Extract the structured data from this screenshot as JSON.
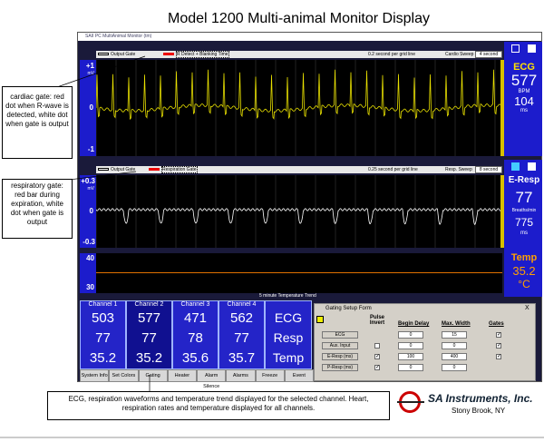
{
  "title": "Model 1200 Multi-animal Monitor Display",
  "window": {
    "title": "SAII PC MultiAnimal Monitor (tm)"
  },
  "callouts": [
    "cardiac gate: red dot when R-wave is detected, white dot when gate is output",
    "respiratory gate: red bar during expiration, white dot when gate is output",
    "ECG, respiration waveforms and temperature trend displayed for the selected channel.  Heart, respiration rates and temperature displayed for all channels."
  ],
  "ecg": {
    "legend": [
      "Output Gate",
      "R Detect + Blanking Time"
    ],
    "scale": "0.2 second per grid line",
    "sweep_label": "Cardio Sweep",
    "sweep": "4 second",
    "axis": [
      "+1",
      "mV",
      "0",
      "-1"
    ],
    "readout": {
      "name": "ECG",
      "rate": 577,
      "rate_unit": "BPM",
      "interval": 104,
      "interval_unit": "ms"
    }
  },
  "resp": {
    "legend": [
      "Output Gate",
      "Respiration Gate"
    ],
    "scale": "0.25 second per grid line",
    "sweep_label": "Resp. Sweep",
    "sweep": "8 second",
    "axis": [
      "+0.3",
      "mV",
      "0",
      "-0.3"
    ],
    "readout": {
      "name": "E-Resp",
      "rate": 77,
      "rate_unit": "Breaths/min",
      "interval": 775,
      "interval_unit": "ms"
    }
  },
  "temp": {
    "axis": [
      "40",
      "30"
    ],
    "caption": "5 minute Temperature Trend",
    "readout": {
      "name": "Temp",
      "value": 35.2,
      "unit": "°C"
    }
  },
  "channels": [
    {
      "name": "Channel 1",
      "rate": 503,
      "resp": 77,
      "temp": 35.2
    },
    {
      "name": "Channel 2",
      "rate": 577,
      "resp": 77,
      "temp": 35.2
    },
    {
      "name": "Channel 3",
      "rate": 471,
      "resp": 78,
      "temp": 35.6
    },
    {
      "name": "Channel 4",
      "rate": 562,
      "resp": 77,
      "temp": 35.7
    }
  ],
  "channel_labels": [
    "ECG",
    "Resp",
    "Temp"
  ],
  "buttons": [
    "System Info",
    "Set Colors",
    "Gating",
    "Heater",
    "Alarm Silence",
    "Alarms",
    "Freeze",
    "Event"
  ],
  "gating_form": {
    "title": "Gating Setup Form",
    "close": "X",
    "headers": [
      "Pulse Invert",
      "Begin Delay",
      "Max. Width",
      "Gates"
    ],
    "rows": [
      {
        "label": "ECG",
        "begin": 0,
        "width": 15
      },
      {
        "label": "Aux. Input",
        "begin": 0,
        "width": 0
      },
      {
        "label": "E-Resp (ms)",
        "begin": 100,
        "width": 400
      },
      {
        "label": "P-Resp (ms)",
        "begin": 0,
        "width": 0
      }
    ]
  },
  "logo": {
    "name": "SA Instruments, Inc.",
    "location": "Stony Brook, NY"
  }
}
